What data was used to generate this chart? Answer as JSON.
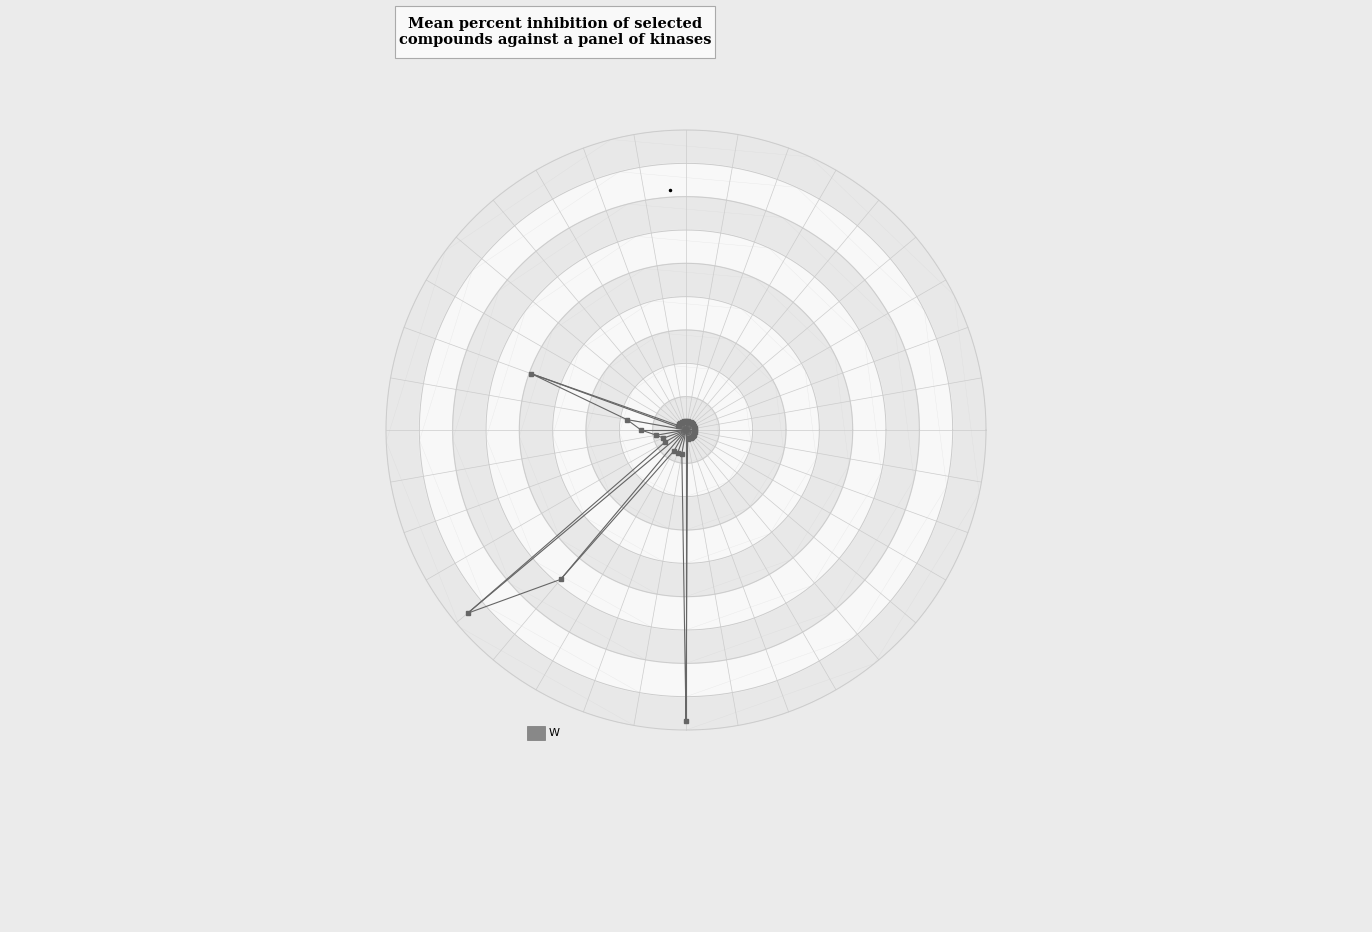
{
  "title": "Mean percent inhibition of selected\ncompounds against a panel of kinases",
  "num_kinases": 36,
  "num_rings": 9,
  "max_value": 100,
  "compound_values": [
    97,
    3,
    3,
    3,
    3,
    3,
    3,
    3,
    3,
    3,
    3,
    3,
    3,
    3,
    3,
    3,
    3,
    3,
    3,
    3,
    3,
    3,
    3,
    3,
    3,
    55,
    20,
    15,
    10,
    8,
    8,
    95,
    65,
    8,
    8,
    8
  ],
  "spider_color": "#666666",
  "ring_color": "#cccccc",
  "ring_fill_odd": "#e8e8e8",
  "ring_fill_even": "#f8f8f8",
  "spoke_color": "#cccccc",
  "bg_color": "#ebebeb",
  "title_box_facecolor": "#f9f9f9",
  "title_box_edgecolor": "#aaaaaa",
  "legend_label": "W",
  "legend_color": "#888888"
}
